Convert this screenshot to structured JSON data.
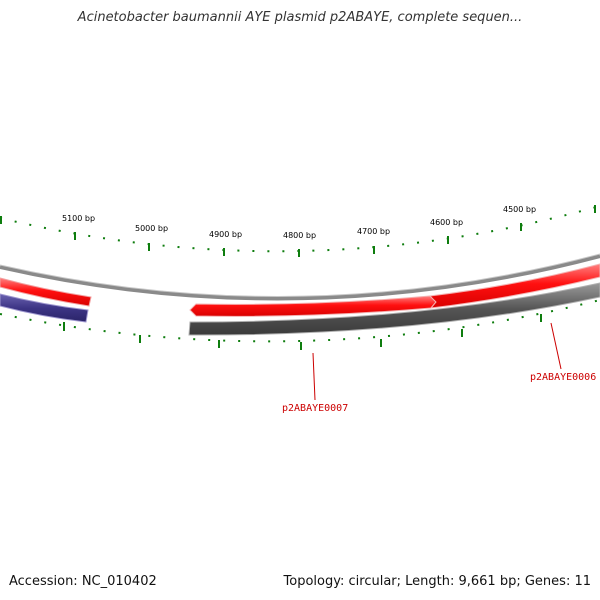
{
  "title": "Acinetobacter baumannii AYE plasmid p2ABAYE, complete sequen...",
  "footer": {
    "accession": "Accession: NC_010402",
    "summary": "Topology: circular; Length: 9,661 bp; Genes: 11"
  },
  "colors": {
    "tick": "#0e7d0e",
    "label_red": "#cc0000",
    "backbone": "#8a8a8a",
    "gene_forward": "#ff0000",
    "gene_reverse_dark": "#555555",
    "gene_reverse_blue": "#3d3585"
  },
  "ruler": {
    "labels": [
      "5100 bp",
      "5000 bp",
      "4900 bp",
      "4800 bp",
      "4700 bp",
      "4600 bp",
      "4500 bp"
    ]
  },
  "genes": {
    "labels": [
      "p2ABAYE0007",
      "p2ABAYE0006"
    ]
  }
}
